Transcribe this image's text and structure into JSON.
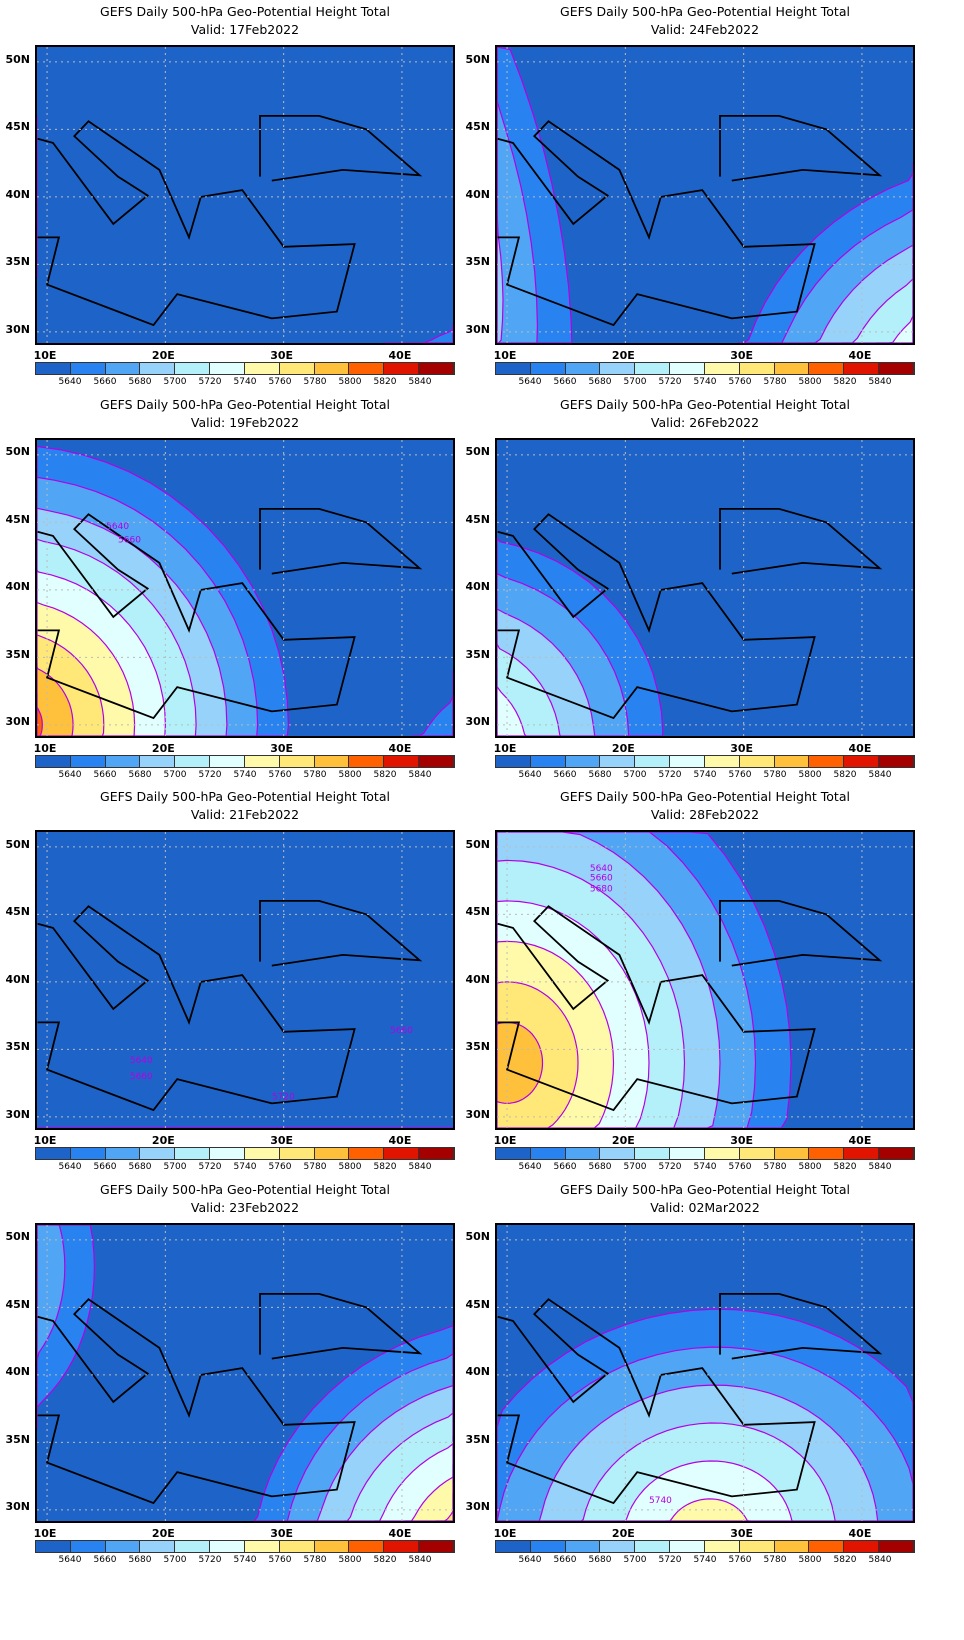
{
  "title_line": "GEFS Daily 500-hPa Geo-Potential Height Total",
  "panels": [
    {
      "valid": "Valid: 17Feb2022"
    },
    {
      "valid": "Valid: 24Feb2022"
    },
    {
      "valid": "Valid: 19Feb2022"
    },
    {
      "valid": "Valid: 26Feb2022",
      "labels": []
    },
    {
      "valid": "Valid: 21Feb2022"
    },
    {
      "valid": "Valid: 28Feb2022"
    },
    {
      "valid": "Valid: 23Feb2022"
    },
    {
      "valid": "Valid: 02Mar2022"
    }
  ],
  "lat_labels": [
    "50N",
    "45N",
    "40N",
    "35N",
    "30N"
  ],
  "lon_labels": [
    "10E",
    "20E",
    "30E",
    "40E"
  ],
  "colorbar": {
    "labels": [
      "5640",
      "5660",
      "5680",
      "5700",
      "5720",
      "5740",
      "5760",
      "5780",
      "5800",
      "5820",
      "5840"
    ],
    "colors": [
      "#1e64c8",
      "#2882f0",
      "#50a5f5",
      "#96d2fa",
      "#b4f0fa",
      "#e1ffff",
      "#fffaaa",
      "#ffe878",
      "#ffc03c",
      "#ff6000",
      "#e11400",
      "#a50000"
    ]
  },
  "contour_color": "#b400e6",
  "map_labels": {
    "p3": [
      "5640",
      "5660"
    ],
    "p5": [
      "5640",
      "5660",
      "5720",
      "5660"
    ],
    "p6": [
      "5640",
      "5660",
      "5680"
    ],
    "p8": [
      "5740"
    ]
  }
}
